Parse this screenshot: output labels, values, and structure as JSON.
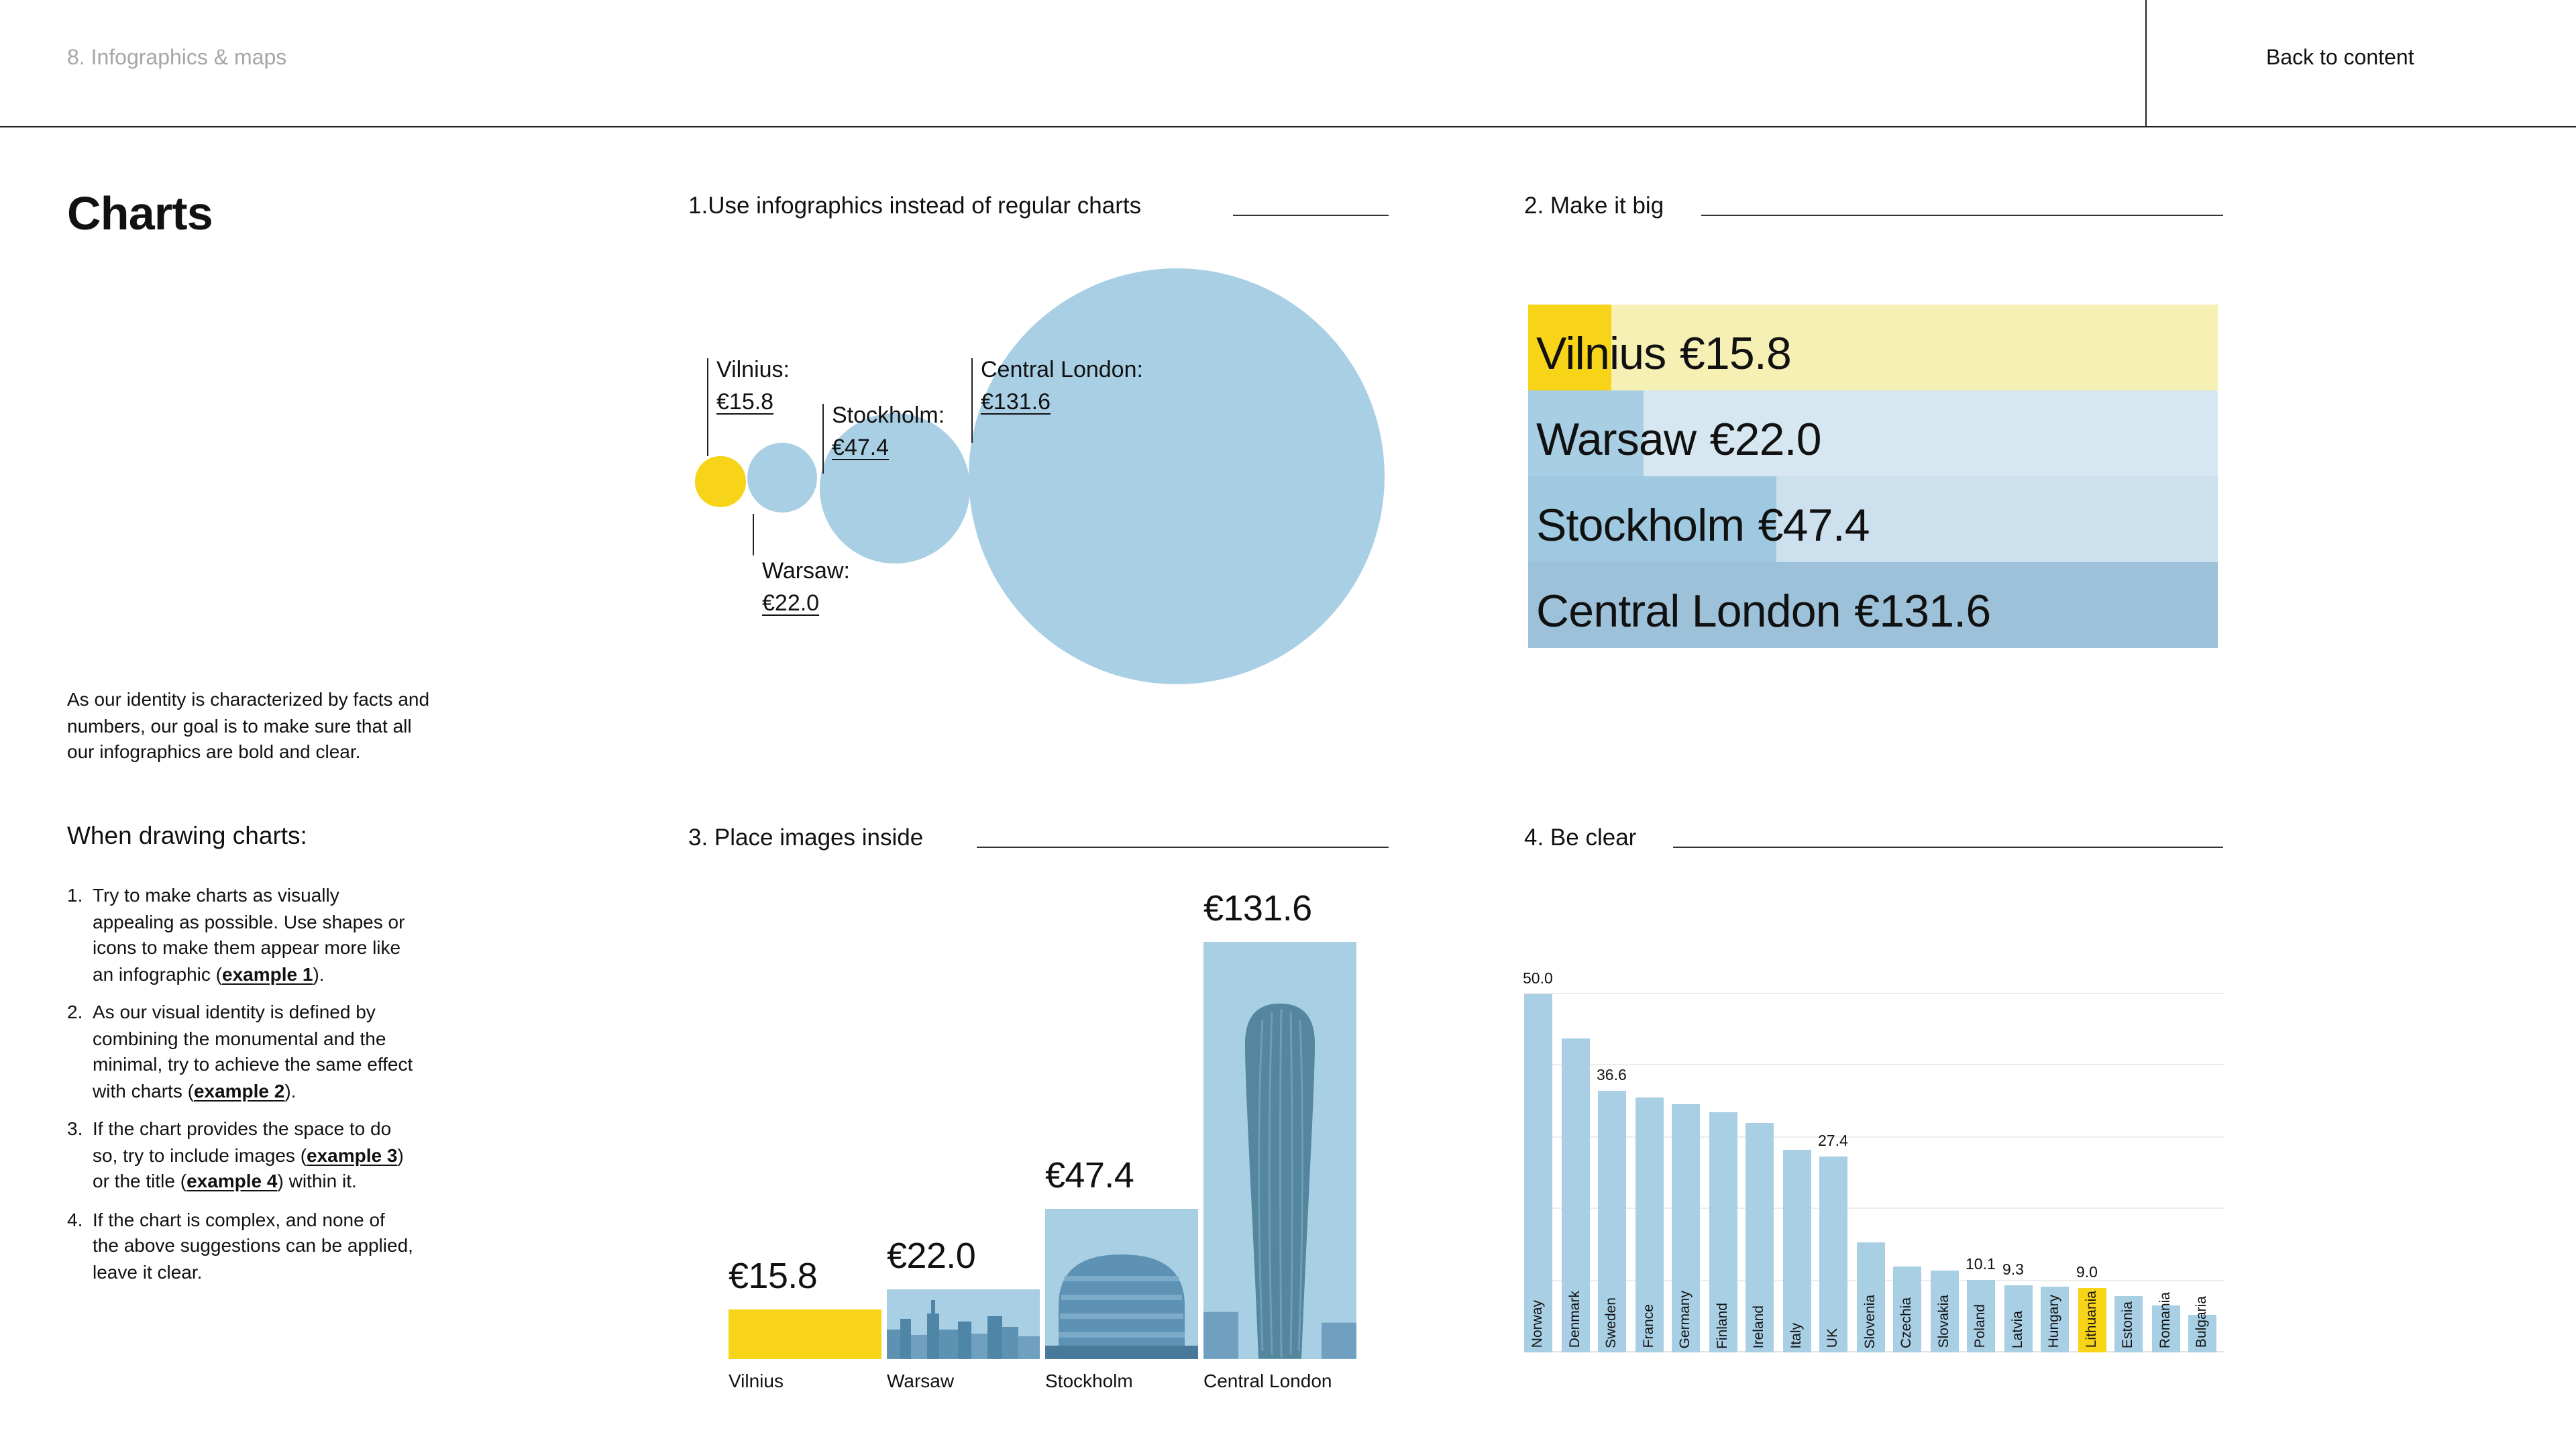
{
  "header": {
    "breadcrumb": "8. Infographics & maps",
    "back_link": "Back to content"
  },
  "sidebar": {
    "title": "Charts",
    "intro": "As our identity is characterized by facts and numbers, our goal is to make sure that all our infographics are bold and clear.",
    "subtitle": "When drawing charts:",
    "list": [
      {
        "num": "1.",
        "pre": "Try to make charts as visually appealing as possible. Use shapes or icons to make them appear more like an infographic (",
        "link": "example 1",
        "post": ")."
      },
      {
        "num": "2.",
        "pre": "As our visual identity is defined by combining the monumental and the minimal, try to achieve the same effect with charts (",
        "link": "example 2",
        "post": ")."
      },
      {
        "num": "3.",
        "pre": "If the chart provides the space to do so, try to include images (",
        "link": "example 3",
        "mid": ") or the title (",
        "link2": "example 4",
        "post": ") within it."
      },
      {
        "num": "4.",
        "pre": "If the chart is complex, and none of the above suggestions can be applied, leave it clear."
      }
    ]
  },
  "sections": {
    "s1": {
      "title": "1.Use infographics instead of regular charts"
    },
    "s2": {
      "title": "2. Make it big"
    },
    "s3": {
      "title": "3. Place images inside"
    },
    "s4": {
      "title": "4. Be clear"
    }
  },
  "cities": [
    {
      "name": "Vilnius",
      "label": "Vilnius:",
      "display": "€15.8",
      "value": 15.8
    },
    {
      "name": "Warsaw",
      "label": "Warsaw:",
      "display": "€22.0",
      "value": 22.0
    },
    {
      "name": "Stockholm",
      "label": "Stockholm:",
      "display": "€47.4",
      "value": 47.4
    },
    {
      "name": "Central London",
      "label": "Central London:",
      "display": "€131.6",
      "value": 131.6
    }
  ],
  "chart_data": [
    {
      "type": "bubble",
      "title": "1.Use infographics instead of regular charts",
      "note": "circle radius proportional to value",
      "points": [
        {
          "label": "Vilnius",
          "value": 15.8,
          "display": "€15.8",
          "color": "#F7D417"
        },
        {
          "label": "Warsaw",
          "value": 22.0,
          "display": "€22.0",
          "color": "#A9CFE4"
        },
        {
          "label": "Stockholm",
          "value": 47.4,
          "display": "€47.4",
          "color": "#A9CFE4"
        },
        {
          "label": "Central London",
          "value": 131.6,
          "display": "€131.6",
          "color": "#A9CFE4"
        }
      ]
    },
    {
      "type": "bar",
      "orientation": "horizontal",
      "title": "2. Make it big",
      "categories": [
        "Vilnius",
        "Warsaw",
        "Stockholm",
        "Central London"
      ],
      "values": [
        15.8,
        22.0,
        47.4,
        131.6
      ],
      "max_value": 131.6,
      "rows": [
        {
          "segment_color": "#F7D417",
          "rest_color": "#F6F0B4"
        },
        {
          "segment_color": "#A8CEE3",
          "rest_color": "#D6E7F1"
        },
        {
          "segment_color": "#9FC9E0",
          "rest_color": "#CCE0EE"
        },
        {
          "segment_color": "#9CC1D8",
          "rest_color": "#9CC1D8"
        }
      ]
    },
    {
      "type": "bar",
      "orientation": "vertical",
      "title": "3. Place images inside",
      "categories": [
        "Vilnius",
        "Warsaw",
        "Stockholm",
        "Central London"
      ],
      "values": [
        15.8,
        22.0,
        47.4,
        131.6
      ],
      "value_labels": [
        "€15.8",
        "€22.0",
        "€47.4",
        "€131.6"
      ],
      "bar_colors": [
        "#F7D417",
        "#A9CFE4",
        "#A9CFE4",
        "#A9CFE4"
      ]
    },
    {
      "type": "bar",
      "orientation": "vertical",
      "title": "4. Be clear",
      "categories": [
        "Norway",
        "Denmark",
        "Sweden",
        "France",
        "Germany",
        "Finland",
        "Ireland",
        "Italy",
        "UK",
        "Slovenia",
        "Czechia",
        "Slovakia",
        "Poland",
        "Latvia",
        "Hungary",
        "Lithuania",
        "Estonia",
        "Romania",
        "Bulgaria"
      ],
      "values": [
        50.0,
        43.8,
        36.6,
        35.5,
        34.6,
        33.5,
        32.0,
        28.2,
        27.4,
        15.4,
        11.9,
        11.5,
        10.1,
        9.3,
        9.2,
        9.0,
        7.8,
        6.6,
        5.3
      ],
      "value_labels": [
        "50.0",
        null,
        "36.6",
        null,
        null,
        null,
        null,
        null,
        "27.4",
        null,
        null,
        null,
        "10.1",
        "9.3",
        null,
        "9.0",
        null,
        null,
        null
      ],
      "highlight_index": 15,
      "bar_color": "#A9CFE4",
      "highlight_color": "#F7D417",
      "ylim": [
        0,
        50
      ],
      "gridlines": [
        10,
        20,
        30,
        40,
        50
      ]
    }
  ],
  "colors": {
    "accent_yellow": "#F7D417",
    "light_blue": "#A9CFE4",
    "text": "#111111",
    "muted": "#A6A6A6",
    "line": "#222222",
    "gridline": "#ECECEC"
  }
}
